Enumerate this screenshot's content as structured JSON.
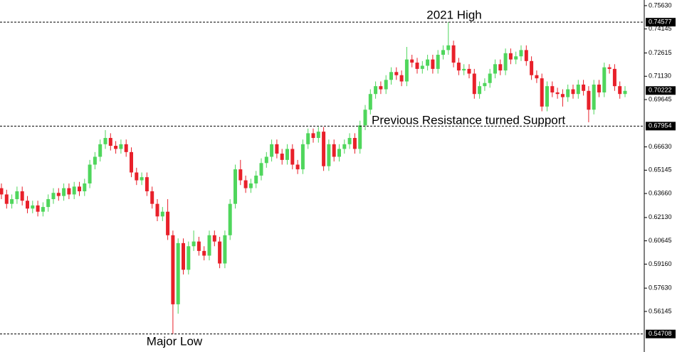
{
  "chart_data": {
    "type": "candlestick",
    "up_color": "#4fd65c",
    "down_color": "#e8202a",
    "ylim": [
      0.5356,
      0.7599
    ],
    "yticks": [
      {
        "value": 0.7563,
        "label": "0.75630"
      },
      {
        "value": 0.74145,
        "label": "0.74145"
      },
      {
        "value": 0.72615,
        "label": "0.72615"
      },
      {
        "value": 0.7113,
        "label": "0.71130"
      },
      {
        "value": 0.69645,
        "label": "0.69645"
      },
      {
        "value": 0.6663,
        "label": "0.66630"
      },
      {
        "value": 0.65145,
        "label": "0.65145"
      },
      {
        "value": 0.6366,
        "label": "0.63660"
      },
      {
        "value": 0.6213,
        "label": "0.62130"
      },
      {
        "value": 0.60645,
        "label": "0.60645"
      },
      {
        "value": 0.5916,
        "label": "0.59160"
      },
      {
        "value": 0.5763,
        "label": "0.57630"
      },
      {
        "value": 0.56145,
        "label": "0.56145"
      }
    ],
    "levels": [
      {
        "value": 0.74577,
        "label": "0.74577",
        "dashed": true
      },
      {
        "value": 0.70222,
        "label": "0.70222",
        "dashed": false
      },
      {
        "value": 0.67954,
        "label": "0.67954",
        "dashed": true
      },
      {
        "value": 0.54708,
        "label": "0.54708",
        "dashed": true
      }
    ],
    "annotations": [
      "2021 High",
      "Previous Resistance turned Support",
      "Major Low"
    ],
    "open": [
      0.64,
      0.636,
      0.63,
      0.633,
      0.638,
      0.632,
      0.627,
      0.629,
      0.625,
      0.628,
      0.633,
      0.637,
      0.635,
      0.64,
      0.636,
      0.641,
      0.638,
      0.643,
      0.655,
      0.66,
      0.668,
      0.672,
      0.667,
      0.665,
      0.668,
      0.663,
      0.65,
      0.645,
      0.647,
      0.638,
      0.63,
      0.622,
      0.625,
      0.61,
      0.566,
      0.605,
      0.588,
      0.603,
      0.606,
      0.6,
      0.597,
      0.61,
      0.606,
      0.592,
      0.61,
      0.63,
      0.652,
      0.645,
      0.64,
      0.643,
      0.648,
      0.656,
      0.66,
      0.668,
      0.662,
      0.658,
      0.665,
      0.655,
      0.652,
      0.668,
      0.675,
      0.672,
      0.676,
      0.654,
      0.668,
      0.66,
      0.665,
      0.668,
      0.672,
      0.665,
      0.68,
      0.69,
      0.7,
      0.705,
      0.703,
      0.709,
      0.714,
      0.712,
      0.708,
      0.722,
      0.72,
      0.716,
      0.718,
      0.722,
      0.716,
      0.725,
      0.728,
      0.731,
      0.72,
      0.715,
      0.716,
      0.713,
      0.7,
      0.705,
      0.707,
      0.713,
      0.719,
      0.715,
      0.726,
      0.722,
      0.724,
      0.728,
      0.721,
      0.712,
      0.71,
      0.692,
      0.705,
      0.701,
      0.7,
      0.698,
      0.703,
      0.7,
      0.706,
      0.702,
      0.69,
      0.706,
      0.701,
      0.717,
      0.716,
      0.705,
      0.7
    ],
    "high": [
      0.643,
      0.639,
      0.636,
      0.641,
      0.641,
      0.635,
      0.632,
      0.632,
      0.631,
      0.636,
      0.64,
      0.64,
      0.643,
      0.643,
      0.644,
      0.644,
      0.646,
      0.658,
      0.663,
      0.671,
      0.677,
      0.675,
      0.67,
      0.671,
      0.671,
      0.666,
      0.653,
      0.65,
      0.65,
      0.641,
      0.633,
      0.628,
      0.633,
      0.613,
      0.608,
      0.608,
      0.606,
      0.613,
      0.609,
      0.603,
      0.613,
      0.613,
      0.609,
      0.613,
      0.633,
      0.655,
      0.658,
      0.648,
      0.646,
      0.651,
      0.659,
      0.663,
      0.671,
      0.671,
      0.665,
      0.668,
      0.668,
      0.658,
      0.671,
      0.678,
      0.678,
      0.679,
      0.679,
      0.671,
      0.671,
      0.668,
      0.671,
      0.675,
      0.675,
      0.683,
      0.693,
      0.703,
      0.708,
      0.708,
      0.712,
      0.717,
      0.717,
      0.715,
      0.73,
      0.725,
      0.723,
      0.721,
      0.725,
      0.725,
      0.728,
      0.731,
      0.7458,
      0.734,
      0.723,
      0.719,
      0.719,
      0.716,
      0.708,
      0.71,
      0.716,
      0.722,
      0.722,
      0.729,
      0.729,
      0.727,
      0.731,
      0.731,
      0.724,
      0.715,
      0.713,
      0.708,
      0.708,
      0.704,
      0.703,
      0.706,
      0.706,
      0.709,
      0.709,
      0.705,
      0.709,
      0.709,
      0.72,
      0.719,
      0.719,
      0.708,
      0.705
    ],
    "low": [
      0.633,
      0.627,
      0.627,
      0.63,
      0.629,
      0.624,
      0.624,
      0.622,
      0.622,
      0.625,
      0.63,
      0.632,
      0.632,
      0.633,
      0.633,
      0.635,
      0.635,
      0.64,
      0.652,
      0.657,
      0.665,
      0.664,
      0.662,
      0.662,
      0.66,
      0.647,
      0.642,
      0.642,
      0.635,
      0.627,
      0.619,
      0.619,
      0.607,
      0.547,
      0.56,
      0.585,
      0.585,
      0.6,
      0.597,
      0.594,
      0.594,
      0.603,
      0.589,
      0.589,
      0.607,
      0.627,
      0.642,
      0.637,
      0.637,
      0.64,
      0.645,
      0.653,
      0.657,
      0.659,
      0.655,
      0.655,
      0.652,
      0.649,
      0.649,
      0.665,
      0.669,
      0.669,
      0.651,
      0.651,
      0.657,
      0.657,
      0.662,
      0.665,
      0.662,
      0.662,
      0.677,
      0.687,
      0.697,
      0.7,
      0.7,
      0.706,
      0.709,
      0.705,
      0.705,
      0.717,
      0.713,
      0.713,
      0.715,
      0.713,
      0.713,
      0.722,
      0.725,
      0.717,
      0.712,
      0.712,
      0.71,
      0.697,
      0.697,
      0.702,
      0.704,
      0.71,
      0.712,
      0.712,
      0.719,
      0.719,
      0.721,
      0.718,
      0.709,
      0.707,
      0.689,
      0.689,
      0.698,
      0.697,
      0.692,
      0.695,
      0.697,
      0.697,
      0.699,
      0.682,
      0.687,
      0.698,
      0.698,
      0.713,
      0.702,
      0.697,
      0.698
    ],
    "close": [
      0.636,
      0.63,
      0.633,
      0.638,
      0.632,
      0.627,
      0.629,
      0.625,
      0.628,
      0.633,
      0.637,
      0.635,
      0.64,
      0.636,
      0.641,
      0.638,
      0.643,
      0.655,
      0.66,
      0.668,
      0.672,
      0.667,
      0.665,
      0.668,
      0.663,
      0.65,
      0.645,
      0.647,
      0.638,
      0.63,
      0.622,
      0.625,
      0.61,
      0.566,
      0.605,
      0.588,
      0.603,
      0.606,
      0.6,
      0.597,
      0.61,
      0.606,
      0.592,
      0.61,
      0.63,
      0.652,
      0.645,
      0.64,
      0.643,
      0.648,
      0.656,
      0.66,
      0.668,
      0.662,
      0.658,
      0.665,
      0.655,
      0.652,
      0.668,
      0.675,
      0.672,
      0.676,
      0.654,
      0.668,
      0.66,
      0.665,
      0.668,
      0.672,
      0.665,
      0.68,
      0.69,
      0.7,
      0.705,
      0.703,
      0.709,
      0.714,
      0.712,
      0.708,
      0.722,
      0.72,
      0.716,
      0.718,
      0.722,
      0.716,
      0.725,
      0.728,
      0.731,
      0.72,
      0.715,
      0.716,
      0.713,
      0.7,
      0.705,
      0.707,
      0.713,
      0.719,
      0.715,
      0.726,
      0.722,
      0.724,
      0.728,
      0.721,
      0.712,
      0.71,
      0.692,
      0.705,
      0.701,
      0.7,
      0.698,
      0.703,
      0.7,
      0.706,
      0.702,
      0.69,
      0.706,
      0.701,
      0.717,
      0.716,
      0.705,
      0.7,
      0.702
    ]
  }
}
